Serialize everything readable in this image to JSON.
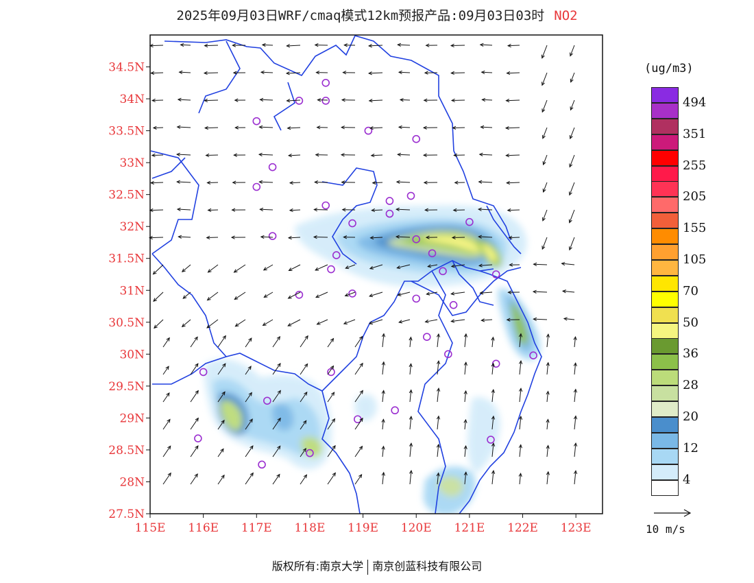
{
  "title": {
    "main": "2025年09月03日WRF/cmaq模式12km预报产品:09月03日03时",
    "species": "NO2"
  },
  "map": {
    "lat_ticks": [
      "34.5N",
      "34N",
      "33.5N",
      "33N",
      "32.5N",
      "32N",
      "31.5N",
      "31N",
      "30.5N",
      "30N",
      "29.5N",
      "29N",
      "28.5N",
      "28N",
      "27.5N"
    ],
    "lat_values": [
      34.5,
      34,
      33.5,
      33,
      32.5,
      32,
      31.5,
      31,
      30.5,
      30,
      29.5,
      29,
      28.5,
      28,
      27.5
    ],
    "lon_ticks": [
      "115E",
      "116E",
      "117E",
      "118E",
      "119E",
      "120E",
      "121E",
      "122E",
      "123E"
    ],
    "lon_values": [
      115,
      116,
      117,
      118,
      119,
      120,
      121,
      122,
      123
    ],
    "lon_range": [
      115,
      123.5
    ],
    "lat_range": [
      27.5,
      35
    ],
    "colors": {
      "boundary": "#2040e0",
      "label": "#e8373a",
      "station": "#9b2fd0"
    }
  },
  "legend": {
    "unit": "(ug/m3)",
    "bins": [
      {
        "label": "494",
        "color": "#8a2be2"
      },
      {
        "label": "",
        "color": "#a830c8"
      },
      {
        "label": "351",
        "color": "#b03060"
      },
      {
        "label": "",
        "color": "#cc1a7a"
      },
      {
        "label": "255",
        "color": "#ff0000"
      },
      {
        "label": "",
        "color": "#ff1a4a"
      },
      {
        "label": "205",
        "color": "#ff3355"
      },
      {
        "label": "",
        "color": "#ff6a6a"
      },
      {
        "label": "155",
        "color": "#f25f3a"
      },
      {
        "label": "",
        "color": "#ff8c00"
      },
      {
        "label": "105",
        "color": "#ffa030"
      },
      {
        "label": "",
        "color": "#ffb640"
      },
      {
        "label": "70",
        "color": "#ffe600"
      },
      {
        "label": "",
        "color": "#ffff00"
      },
      {
        "label": "50",
        "color": "#f0e050"
      },
      {
        "label": "",
        "color": "#f5f580"
      },
      {
        "label": "36",
        "color": "#6a9a30"
      },
      {
        "label": "",
        "color": "#8cc04a"
      },
      {
        "label": "28",
        "color": "#bcdc7a"
      },
      {
        "label": "",
        "color": "#c8e0a0"
      },
      {
        "label": "20",
        "color": "#e0ecc8"
      },
      {
        "label": "",
        "color": "#4a8ecc"
      },
      {
        "label": "12",
        "color": "#7ab8e6"
      },
      {
        "label": "",
        "color": "#a8d8f4"
      },
      {
        "label": "4",
        "color": "#d4ecfa"
      },
      {
        "label": "",
        "color": "#ffffff"
      }
    ]
  },
  "reference_vector": {
    "label": "10 m/s"
  },
  "footer": {
    "left": "版权所有:南京大学",
    "right": "南京创蓝科技有限公司"
  }
}
